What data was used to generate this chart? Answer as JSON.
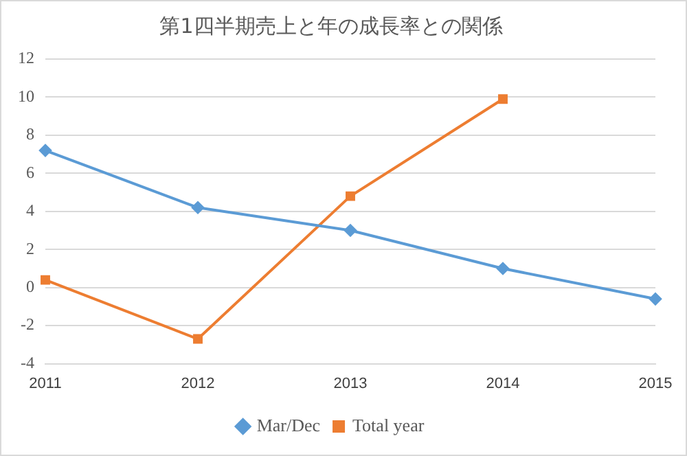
{
  "chart_data": {
    "type": "line",
    "title": "第1四半期売上と年の成長率との関係",
    "categories": [
      "2011",
      "2012",
      "2013",
      "2014",
      "2015"
    ],
    "series": [
      {
        "name": "Mar/Dec",
        "color": "#5b9bd5",
        "marker": "diamond",
        "values": [
          7.2,
          4.2,
          3.0,
          1.0,
          -0.6
        ]
      },
      {
        "name": "Total year",
        "color": "#ed7d31",
        "marker": "square",
        "values": [
          0.4,
          -2.7,
          4.8,
          9.9,
          null
        ]
      }
    ],
    "ylim": [
      -4,
      12
    ],
    "yticks": [
      -4,
      -2,
      0,
      2,
      4,
      6,
      8,
      10,
      12
    ],
    "grid": "y",
    "legend": "bottom",
    "line_style": "solid"
  }
}
